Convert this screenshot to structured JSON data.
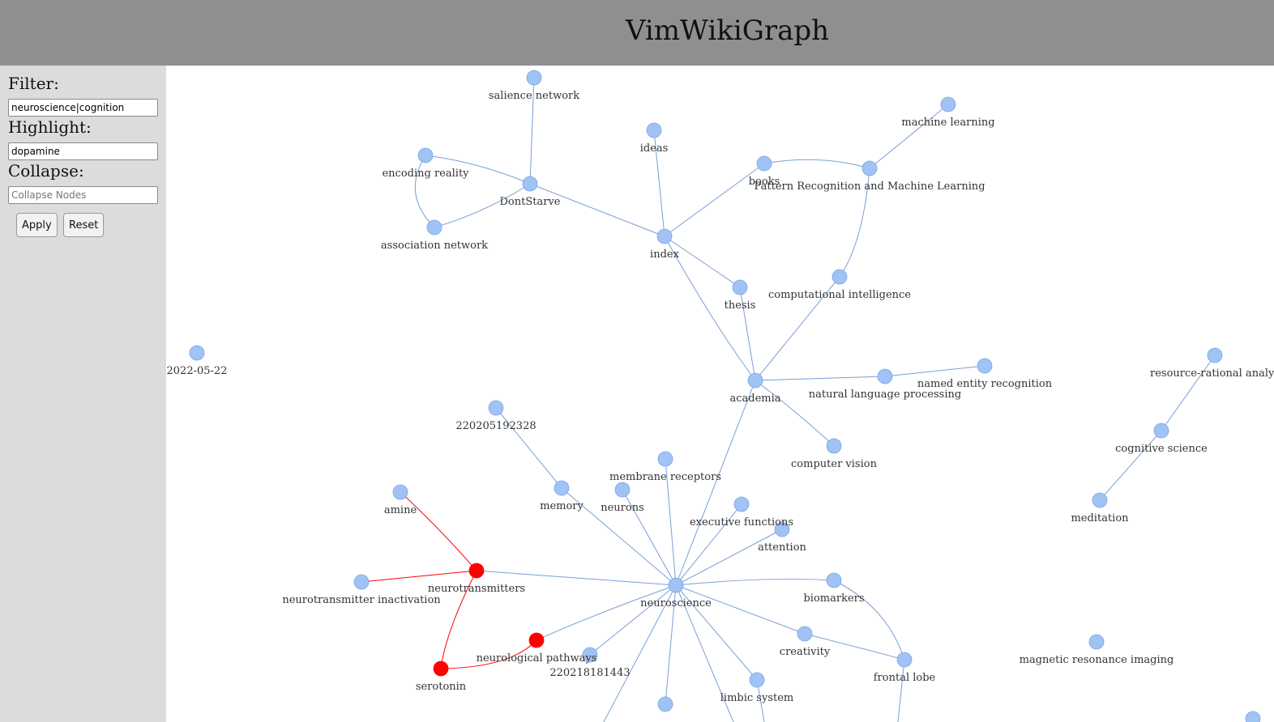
{
  "app": {
    "title": "VimWikiGraph"
  },
  "sidebar": {
    "filter": {
      "label": "Filter:",
      "value": "neuroscience|cognition"
    },
    "highlight": {
      "label": "Highlight:",
      "value": "dopamine"
    },
    "collapse": {
      "label": "Collapse:",
      "value": "",
      "placeholder": "Collapse Nodes"
    },
    "apply_label": "Apply",
    "reset_label": "Reset"
  },
  "graph": {
    "colors": {
      "node": "#a0c2f5",
      "node_stroke": "#7aa6e6",
      "edge": "#7a9fd6",
      "highlight": "#ff0000"
    },
    "nodes": [
      {
        "id": "salience",
        "label": "salience network"
      },
      {
        "id": "machine_learning",
        "label": "machine learning"
      },
      {
        "id": "ideas",
        "label": "ideas"
      },
      {
        "id": "encoding_reality",
        "label": "encoding reality"
      },
      {
        "id": "books",
        "label": "books"
      },
      {
        "id": "prml",
        "label": "Pattern Recognition and Machine Learning"
      },
      {
        "id": "dontstarve",
        "label": "DontStarve"
      },
      {
        "id": "association_network",
        "label": "association network"
      },
      {
        "id": "index",
        "label": "index"
      },
      {
        "id": "computational_intelligence",
        "label": "computational intelligence"
      },
      {
        "id": "thesis",
        "label": "thesis"
      },
      {
        "id": "date_node",
        "label": "2022-05-22"
      },
      {
        "id": "resource_rational",
        "label": "resource-rational analys"
      },
      {
        "id": "named_entity",
        "label": "named entity recognition"
      },
      {
        "id": "nlp",
        "label": "natural language processing"
      },
      {
        "id": "academia",
        "label": "academia"
      },
      {
        "id": "id_220205",
        "label": "220205192328"
      },
      {
        "id": "cognitive_science",
        "label": "cognitive science"
      },
      {
        "id": "computer_vision",
        "label": "computer vision"
      },
      {
        "id": "membrane_receptors",
        "label": "membrane receptors"
      },
      {
        "id": "amine",
        "label": "amine"
      },
      {
        "id": "memory",
        "label": "memory"
      },
      {
        "id": "neurons",
        "label": "neurons"
      },
      {
        "id": "executive_functions",
        "label": "executive functions"
      },
      {
        "id": "meditation",
        "label": "meditation"
      },
      {
        "id": "attention",
        "label": "attention"
      },
      {
        "id": "neurotransmitters",
        "label": "neurotransmitters"
      },
      {
        "id": "nt_inactivation",
        "label": "neurotransmitter inactivation"
      },
      {
        "id": "neuroscience",
        "label": "neuroscience"
      },
      {
        "id": "biomarkers",
        "label": "biomarkers"
      },
      {
        "id": "creativity",
        "label": "creativity"
      },
      {
        "id": "neurological_pathways",
        "label": "neurological pathways"
      },
      {
        "id": "id_220218",
        "label": "220218181443"
      },
      {
        "id": "magnetic_resonance",
        "label": "magnetic resonance imaging"
      },
      {
        "id": "frontal_lobe",
        "label": "frontal lobe"
      },
      {
        "id": "serotonin",
        "label": "serotonin"
      },
      {
        "id": "limbic_system",
        "label": "limbic system"
      },
      {
        "id": "partial_bottom",
        "label": ""
      },
      {
        "id": "corner_node",
        "label": ""
      }
    ],
    "highlighted": [
      "neurotransmitters",
      "serotonin",
      "neurological_pathways"
    ],
    "edges": [
      {
        "source": "salience",
        "target": "dontstarve"
      },
      {
        "source": "encoding_reality",
        "target": "dontstarve"
      },
      {
        "source": "encoding_reality",
        "target": "association_network"
      },
      {
        "source": "association_network",
        "target": "dontstarve"
      },
      {
        "source": "dontstarve",
        "target": "index"
      },
      {
        "source": "ideas",
        "target": "index"
      },
      {
        "source": "index",
        "target": "books"
      },
      {
        "source": "books",
        "target": "prml"
      },
      {
        "source": "prml",
        "target": "machine_learning"
      },
      {
        "source": "prml",
        "target": "computational_intelligence"
      },
      {
        "source": "index",
        "target": "thesis"
      },
      {
        "source": "index",
        "target": "academia"
      },
      {
        "source": "thesis",
        "target": "academia"
      },
      {
        "source": "computational_intelligence",
        "target": "academia"
      },
      {
        "source": "academia",
        "target": "nlp"
      },
      {
        "source": "nlp",
        "target": "named_entity"
      },
      {
        "source": "academia",
        "target": "computer_vision"
      },
      {
        "source": "academia",
        "target": "neuroscience"
      },
      {
        "source": "resource_rational",
        "target": "cognitive_science"
      },
      {
        "source": "cognitive_science",
        "target": "meditation"
      },
      {
        "source": "id_220205",
        "target": "memory"
      },
      {
        "source": "memory",
        "target": "neuroscience"
      },
      {
        "source": "neurons",
        "target": "neuroscience"
      },
      {
        "source": "membrane_receptors",
        "target": "neuroscience"
      },
      {
        "source": "executive_functions",
        "target": "neuroscience"
      },
      {
        "source": "attention",
        "target": "neuroscience"
      },
      {
        "source": "neurotransmitters",
        "target": "neuroscience"
      },
      {
        "source": "neuroscience",
        "target": "biomarkers"
      },
      {
        "source": "biomarkers",
        "target": "frontal_lobe"
      },
      {
        "source": "neuroscience",
        "target": "creativity"
      },
      {
        "source": "creativity",
        "target": "frontal_lobe"
      },
      {
        "source": "neuroscience",
        "target": "neurological_pathways"
      },
      {
        "source": "neuroscience",
        "target": "id_220218"
      },
      {
        "source": "neuroscience",
        "target": "limbic_system"
      },
      {
        "source": "neuroscience",
        "target": "partial_bottom"
      },
      {
        "source": "amine",
        "target": "neurotransmitters",
        "highlighted": true
      },
      {
        "source": "nt_inactivation",
        "target": "neurotransmitters",
        "highlighted": true
      },
      {
        "source": "neurotransmitters",
        "target": "serotonin",
        "highlighted": true
      },
      {
        "source": "serotonin",
        "target": "neurological_pathways",
        "highlighted": true
      }
    ]
  }
}
